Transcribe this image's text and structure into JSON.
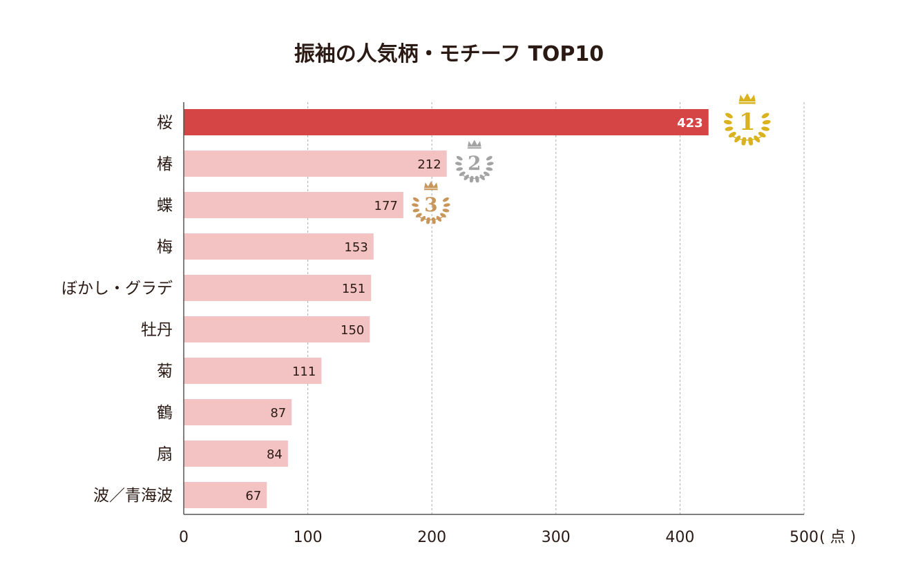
{
  "chart_data": {
    "type": "bar",
    "orientation": "horizontal",
    "title": "振袖の人気柄・モチーフ TOP10",
    "categories": [
      "桜",
      "椿",
      "蝶",
      "梅",
      "ぼかし・グラデ",
      "牡丹",
      "菊",
      "鶴",
      "扇",
      "波／青海波"
    ],
    "values": [
      423,
      212,
      177,
      153,
      151,
      150,
      111,
      87,
      84,
      67
    ],
    "xlabel": "( 点 )",
    "xlim": [
      0,
      500
    ],
    "xticks": [
      0,
      100,
      200,
      300,
      400,
      500
    ],
    "grid": "vertical dashed",
    "medals": [
      {
        "rank": "1",
        "color": "#d9b21e"
      },
      {
        "rank": "2",
        "color": "#a3a3a3"
      },
      {
        "rank": "3",
        "color": "#c8955a"
      }
    ],
    "colors": {
      "top_bar": "#d64545",
      "bar": "#f3c2c3",
      "text": "#2b1a14",
      "grid": "#aaaaaa"
    }
  }
}
